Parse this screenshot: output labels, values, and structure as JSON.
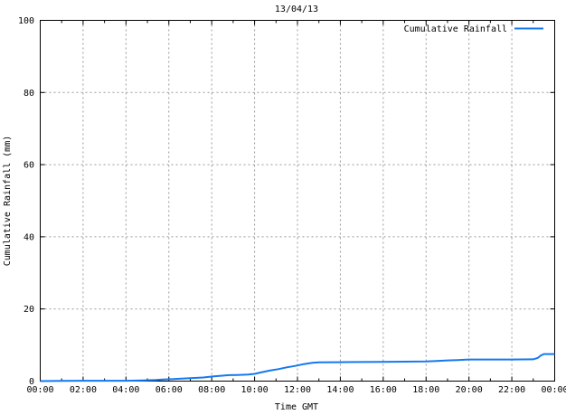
{
  "chart_data": {
    "type": "line",
    "title": "13/04/13",
    "xlabel": "Time GMT",
    "ylabel": "Cumulative Rainfall (mm)",
    "legend_position": "top-right-inside",
    "grid": true,
    "xlim_hours": [
      0,
      24
    ],
    "ylim": [
      0,
      100
    ],
    "x_major_step_hours": 2,
    "x_minor_step_hours": 1,
    "y_major_step": 20,
    "x_tick_labels": [
      "00:00",
      "02:00",
      "04:00",
      "06:00",
      "08:00",
      "10:00",
      "12:00",
      "14:00",
      "16:00",
      "18:00",
      "20:00",
      "22:00",
      "00:00"
    ],
    "y_tick_labels": [
      "0",
      "20",
      "40",
      "60",
      "80",
      "100"
    ],
    "colors": {
      "line": "#1478F0",
      "grid": "#999999",
      "axis": "#000000",
      "background": "#ffffff",
      "text": "#000000"
    },
    "series": [
      {
        "name": "Cumulative Rainfall",
        "units": "mm",
        "points_time_hours_vs_mm": [
          [
            0,
            0
          ],
          [
            1,
            0.05
          ],
          [
            2,
            0.1
          ],
          [
            3,
            0.1
          ],
          [
            4,
            0.1
          ],
          [
            4.8,
            0.2
          ],
          [
            5.4,
            0.3
          ],
          [
            5.7,
            0.45
          ],
          [
            6.2,
            0.55
          ],
          [
            6.8,
            0.75
          ],
          [
            7.3,
            0.9
          ],
          [
            7.6,
            1.0
          ],
          [
            8.1,
            1.3
          ],
          [
            8.5,
            1.5
          ],
          [
            8.8,
            1.65
          ],
          [
            9.2,
            1.7
          ],
          [
            9.7,
            1.8
          ],
          [
            10,
            2.0
          ],
          [
            10.3,
            2.4
          ],
          [
            10.7,
            2.9
          ],
          [
            11.1,
            3.3
          ],
          [
            11.5,
            3.8
          ],
          [
            11.9,
            4.2
          ],
          [
            12.3,
            4.7
          ],
          [
            12.7,
            5.1
          ],
          [
            13,
            5.2
          ],
          [
            14,
            5.25
          ],
          [
            15,
            5.3
          ],
          [
            16,
            5.35
          ],
          [
            17,
            5.4
          ],
          [
            18,
            5.45
          ],
          [
            18.5,
            5.6
          ],
          [
            19,
            5.75
          ],
          [
            19.5,
            5.85
          ],
          [
            20,
            6.0
          ],
          [
            21,
            6.0
          ],
          [
            22,
            6.0
          ],
          [
            23,
            6.05
          ],
          [
            23.2,
            6.4
          ],
          [
            23.35,
            7.1
          ],
          [
            23.5,
            7.5
          ],
          [
            24,
            7.5
          ]
        ]
      }
    ]
  }
}
